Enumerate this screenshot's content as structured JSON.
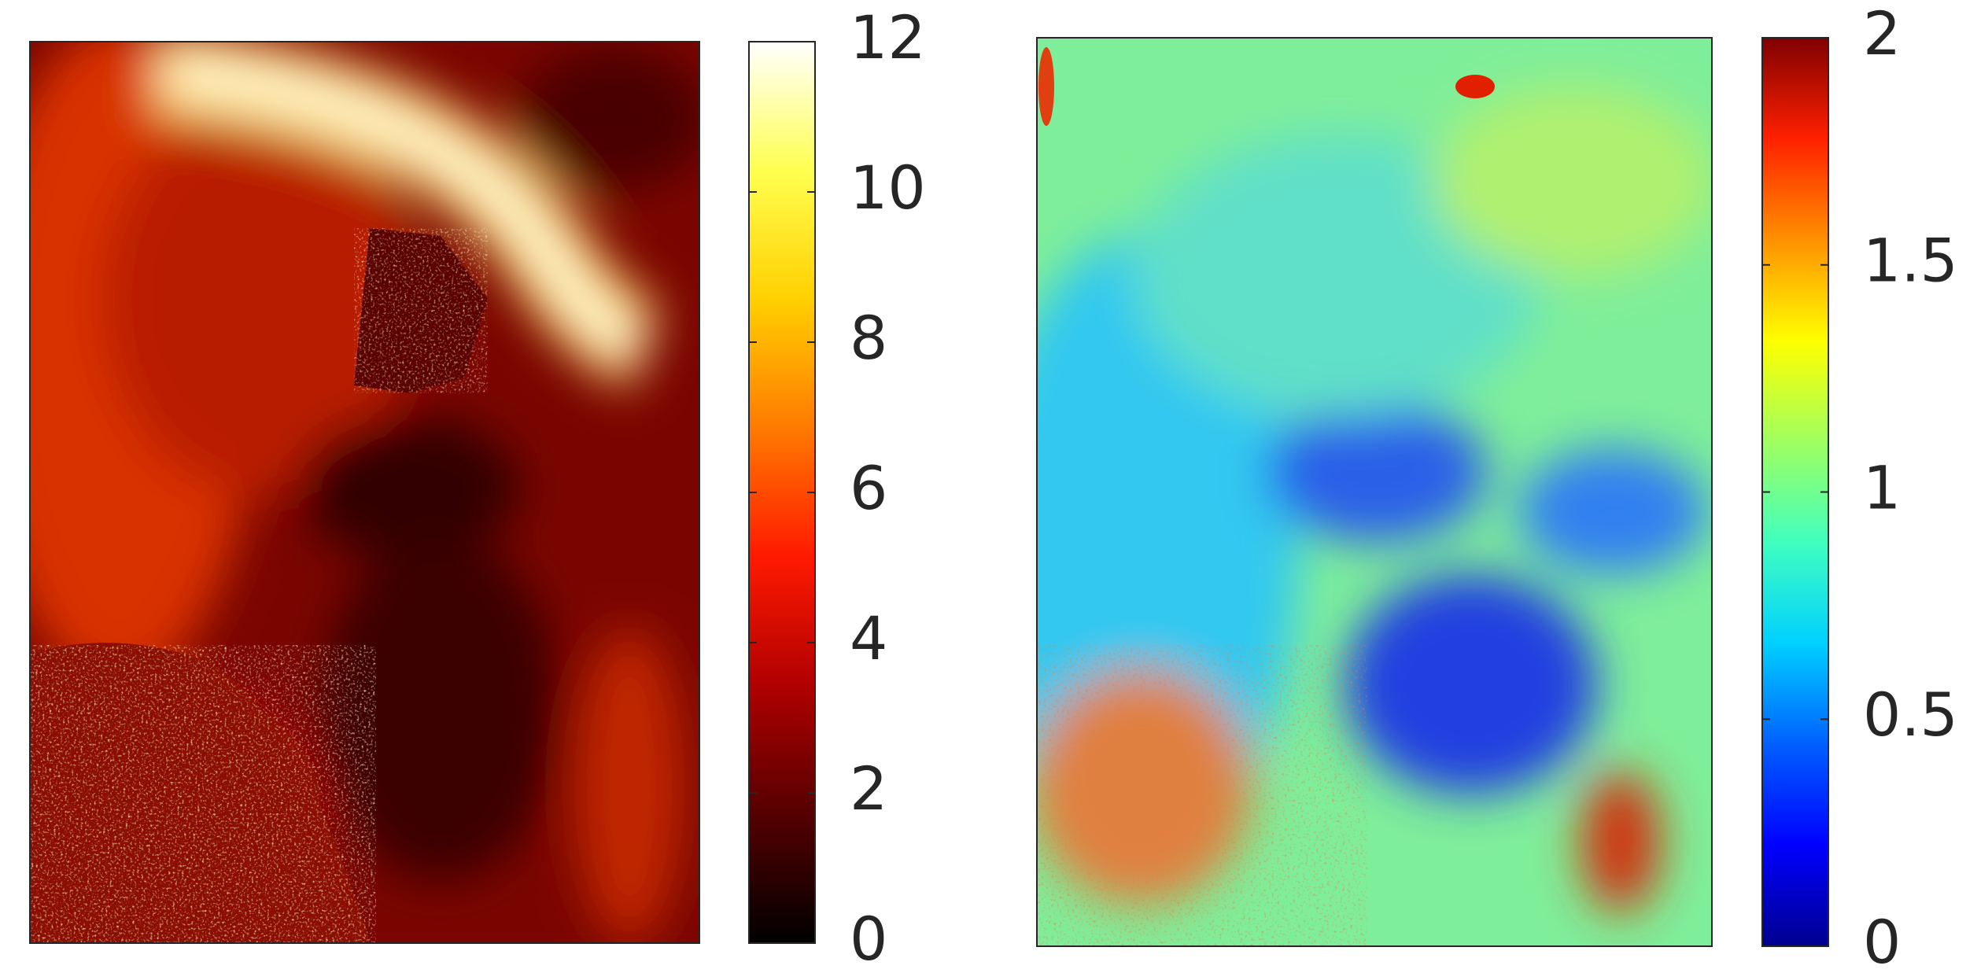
{
  "chart_data": [
    {
      "type": "heatmap",
      "colormap": "hot",
      "clim": [
        0,
        12
      ],
      "cticks": [
        0,
        2,
        4,
        6,
        8,
        10,
        12
      ]
    },
    {
      "type": "heatmap",
      "colormap": "jet",
      "clim": [
        0,
        2
      ],
      "cticks": [
        0,
        0.5,
        1,
        1.5,
        2
      ]
    }
  ]
}
